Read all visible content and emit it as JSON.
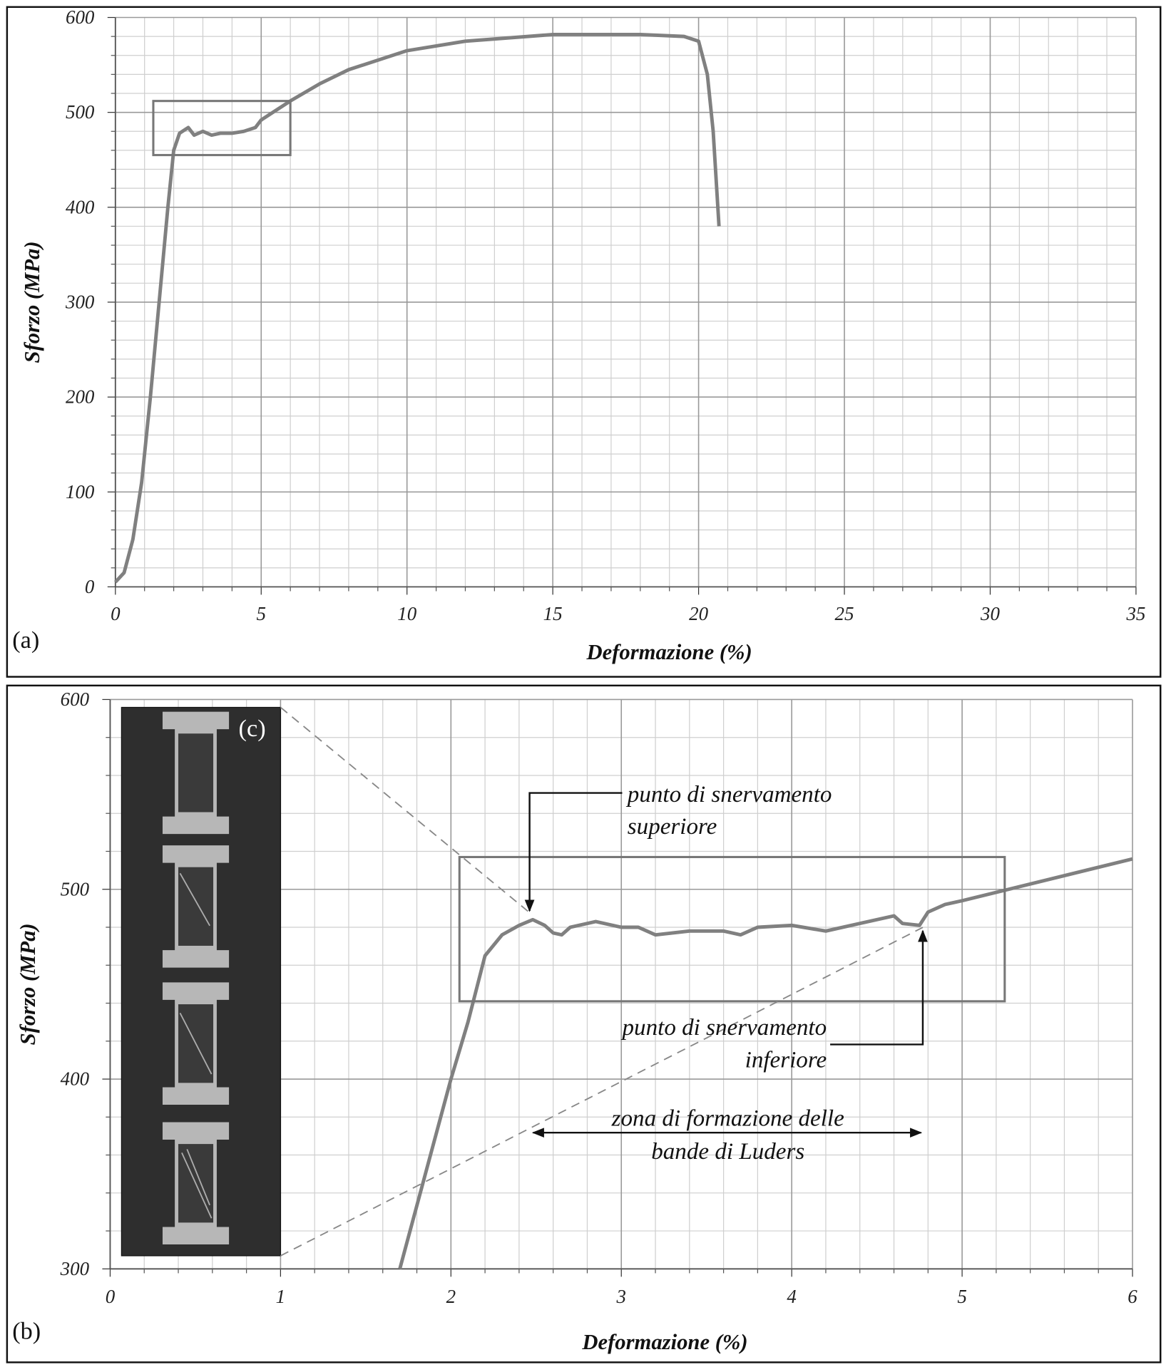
{
  "chart_data": [
    {
      "type": "line",
      "panel_label": "(a)",
      "x_label": "Deformazione (%)",
      "y_label": "Sforzo (MPa)",
      "xlim": [
        0,
        35
      ],
      "ylim": [
        0,
        600
      ],
      "xticks": [
        0,
        5,
        10,
        15,
        20,
        25,
        30,
        35
      ],
      "yticks": [
        0,
        100,
        200,
        300,
        400,
        500,
        600
      ],
      "grid": true,
      "x": [
        0,
        0.3,
        0.6,
        0.9,
        1.2,
        1.5,
        1.8,
        2.0,
        2.2,
        2.5,
        2.7,
        3.0,
        3.3,
        3.6,
        4.0,
        4.4,
        4.8,
        5.0,
        6,
        7,
        8,
        10,
        12,
        15,
        18,
        19.5,
        20,
        20.3,
        20.5,
        20.7
      ],
      "series": [
        {
          "color": "#808080",
          "values": [
            5,
            15,
            50,
            110,
            200,
            300,
            400,
            460,
            478,
            484,
            476,
            480,
            476,
            478,
            478,
            480,
            484,
            492,
            512,
            530,
            545,
            565,
            575,
            582,
            582,
            580,
            575,
            540,
            480,
            380
          ]
        }
      ],
      "zoom_box": {
        "x": [
          1.3,
          6
        ],
        "y": [
          455,
          512
        ]
      }
    },
    {
      "type": "line",
      "panel_label": "(b)",
      "inset_label": "(c)",
      "x_label": "Deformazione (%)",
      "y_label": "Sforzo (MPa)",
      "xlim": [
        0,
        6
      ],
      "ylim": [
        300,
        600
      ],
      "xticks": [
        0,
        1,
        2,
        3,
        4,
        5,
        6
      ],
      "yticks": [
        300,
        400,
        500,
        600
      ],
      "grid": true,
      "x": [
        1.7,
        1.85,
        2.0,
        2.1,
        2.2,
        2.3,
        2.4,
        2.48,
        2.55,
        2.6,
        2.65,
        2.7,
        2.85,
        3.0,
        3.1,
        3.2,
        3.4,
        3.6,
        3.7,
        3.8,
        4.0,
        4.2,
        4.4,
        4.6,
        4.65,
        4.75,
        4.8,
        4.9,
        5.0,
        6.0
      ],
      "series": [
        {
          "color": "#808080",
          "values": [
            300,
            350,
            400,
            430,
            465,
            476,
            481,
            484,
            481,
            477,
            476,
            480,
            483,
            480,
            480,
            476,
            478,
            478,
            476,
            480,
            481,
            478,
            482,
            486,
            482,
            481,
            488,
            492,
            494,
            516
          ]
        }
      ],
      "zoom_box": {
        "x": [
          2.05,
          5.25
        ],
        "y": [
          441,
          517
        ]
      },
      "annotations": [
        {
          "lines": [
            "punto di snervamento",
            "superiore"
          ]
        },
        {
          "lines": [
            "punto di snervamento",
            "inferiore"
          ]
        },
        {
          "lines": [
            "zona di formazione delle",
            "bande di Luders"
          ]
        }
      ]
    }
  ]
}
